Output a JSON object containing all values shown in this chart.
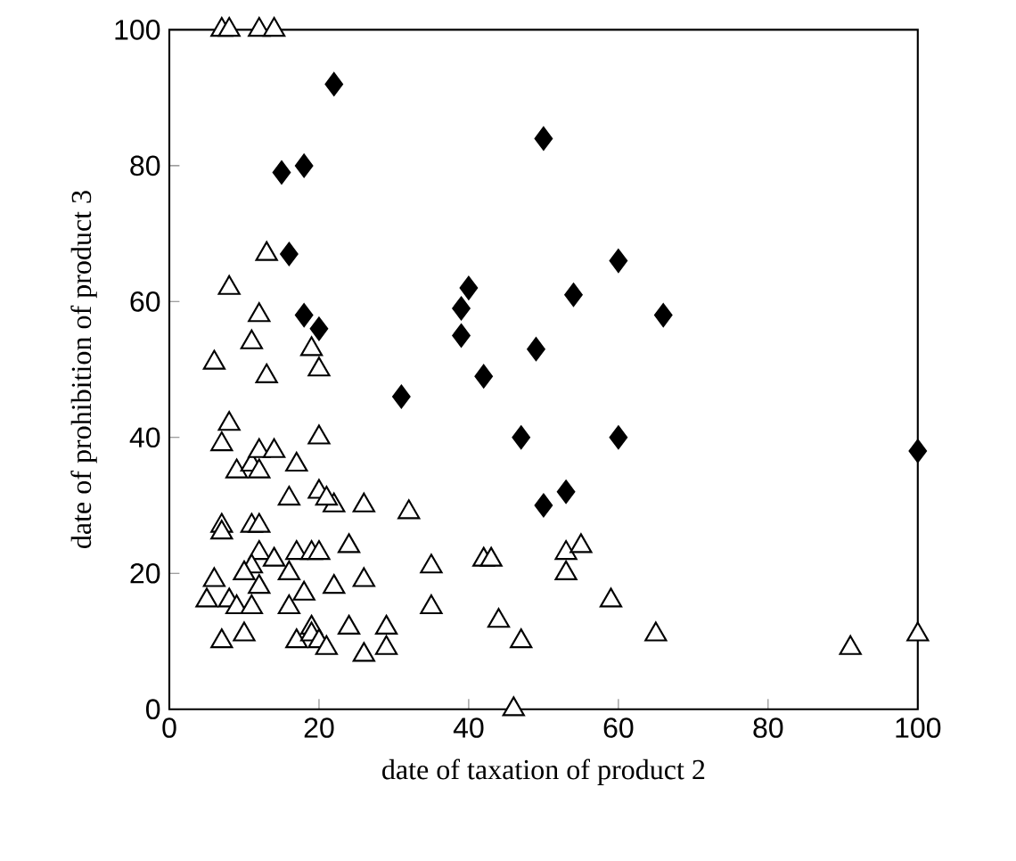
{
  "chart_data": {
    "type": "scatter",
    "xlabel": "date of taxation of product 2",
    "ylabel": "date of prohibition of product 3",
    "xlim": [
      0,
      100
    ],
    "ylim": [
      0,
      100
    ],
    "xticks": [
      0,
      20,
      40,
      60,
      80,
      100
    ],
    "yticks": [
      0,
      20,
      40,
      60,
      80,
      100
    ],
    "grid": false,
    "series": [
      {
        "color": "#000000",
        "marker": "diamond",
        "x": [
          22,
          15,
          18,
          16,
          18,
          20,
          40,
          39,
          39,
          42,
          31,
          50,
          54,
          60,
          66,
          49,
          47,
          60,
          53,
          50,
          100
        ],
        "values": [
          92,
          79,
          80,
          67,
          58,
          56,
          62,
          59,
          55,
          49,
          46,
          84,
          61,
          66,
          58,
          53,
          40,
          40,
          32,
          30,
          38
        ]
      },
      {
        "color": "#000000",
        "marker": "triangle",
        "x": [
          7,
          8,
          12,
          14,
          13,
          8,
          12,
          19,
          11,
          13,
          20,
          6,
          8,
          7,
          9,
          11,
          12,
          12,
          14,
          17,
          20,
          20,
          22,
          16,
          21,
          7,
          7,
          11,
          12,
          12,
          11,
          12,
          8,
          6,
          5,
          9,
          11,
          10,
          14,
          16,
          17,
          19,
          20,
          22,
          18,
          16,
          17,
          19,
          19,
          20,
          21,
          24,
          24,
          26,
          26,
          26,
          29,
          29,
          32,
          35,
          35,
          42,
          43,
          44,
          47,
          46,
          53,
          53,
          55,
          59,
          65,
          91,
          100,
          7,
          10
        ],
        "values": [
          100,
          100,
          100,
          100,
          67,
          62,
          58,
          53,
          54,
          49,
          50,
          51,
          42,
          39,
          35,
          36,
          35,
          38,
          38,
          36,
          40,
          32,
          30,
          31,
          31,
          27,
          26,
          27,
          27,
          23,
          21,
          18,
          16,
          19,
          16,
          15,
          15,
          20,
          22,
          20,
          23,
          23,
          23,
          18,
          17,
          15,
          10,
          12,
          11,
          10,
          9,
          12,
          24,
          19,
          30,
          8,
          12,
          9,
          29,
          21,
          15,
          22,
          22,
          13,
          10,
          0,
          20,
          23,
          24,
          16,
          11,
          9,
          11,
          10,
          11
        ]
      }
    ]
  }
}
